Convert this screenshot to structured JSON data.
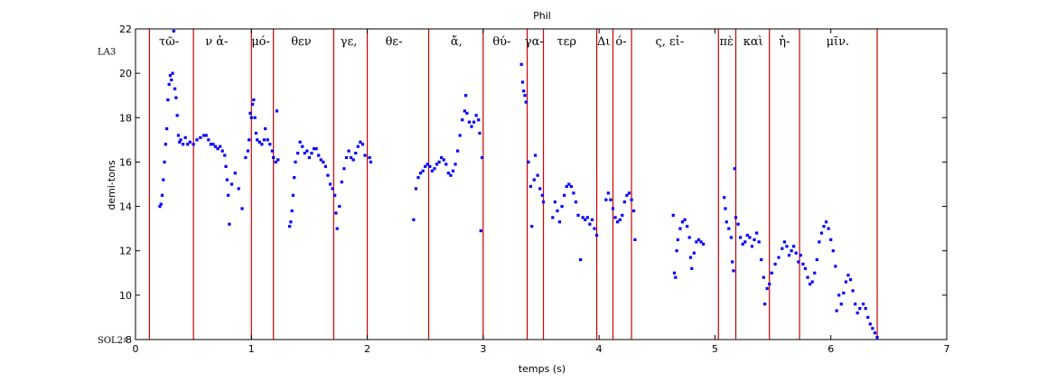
{
  "chart_data": {
    "type": "scatter",
    "title": "Phil",
    "xlabel": "temps (s)",
    "ylabel": "demi-tons",
    "xlim": [
      0,
      7
    ],
    "ylim": [
      8,
      22
    ],
    "xticks": [
      0,
      1,
      2,
      3,
      4,
      5,
      6,
      7
    ],
    "yticks": [
      8,
      10,
      12,
      14,
      16,
      18,
      20,
      22
    ],
    "grid": false,
    "legend": "none",
    "marker_color": "#0000ff",
    "boundary_color": "#cc0000",
    "note_labels": [
      {
        "text": "LA3",
        "y": 21
      },
      {
        "text": "SOL2♯",
        "y": 8
      }
    ],
    "boundaries": [
      0.12,
      0.5,
      1.0,
      1.19,
      1.71,
      2.0,
      2.53,
      3.0,
      3.38,
      3.52,
      3.98,
      4.12,
      4.28,
      5.03,
      5.18,
      5.47,
      5.73,
      6.4
    ],
    "syllables": [
      {
        "text": "τῶ-",
        "x": 0.29
      },
      {
        "text": "ν ἁ-",
        "x": 0.7
      },
      {
        "text": "μό-",
        "x": 1.08
      },
      {
        "text": "θεν",
        "x": 1.43
      },
      {
        "text": "γε,",
        "x": 1.84
      },
      {
        "text": "θε-",
        "x": 2.23
      },
      {
        "text": "ἄ,",
        "x": 2.77
      },
      {
        "text": "θύ-",
        "x": 3.16
      },
      {
        "text": "γα-",
        "x": 3.44
      },
      {
        "text": "τερ",
        "x": 3.72
      },
      {
        "text": "Δι",
        "x": 4.04
      },
      {
        "text": "ό-",
        "x": 4.19
      },
      {
        "text": "ς, εἰ-",
        "x": 4.61
      },
      {
        "text": "πὲ",
        "x": 5.1
      },
      {
        "text": "καὶ",
        "x": 5.33
      },
      {
        "text": "ἡ-",
        "x": 5.6
      },
      {
        "text": "μῖν.",
        "x": 6.06
      }
    ],
    "series": [
      {
        "points": [
          [
            0.21,
            14.0
          ],
          [
            0.22,
            14.1
          ],
          [
            0.23,
            14.5
          ],
          [
            0.24,
            15.2
          ],
          [
            0.25,
            16.0
          ],
          [
            0.26,
            16.8
          ],
          [
            0.27,
            17.5
          ],
          [
            0.28,
            18.8
          ],
          [
            0.29,
            19.5
          ],
          [
            0.3,
            19.9
          ],
          [
            0.31,
            19.7
          ],
          [
            0.32,
            20.0
          ],
          [
            0.33,
            21.9
          ],
          [
            0.34,
            19.3
          ],
          [
            0.35,
            18.9
          ],
          [
            0.36,
            18.1
          ],
          [
            0.37,
            17.2
          ],
          [
            0.38,
            16.9
          ],
          [
            0.39,
            17.0
          ],
          [
            0.41,
            16.8
          ],
          [
            0.43,
            17.1
          ],
          [
            0.45,
            16.8
          ],
          [
            0.47,
            16.9
          ],
          [
            0.5,
            16.8
          ],
          [
            0.53,
            17.0
          ],
          [
            0.56,
            17.1
          ],
          [
            0.59,
            17.2
          ],
          [
            0.61,
            17.2
          ],
          [
            0.63,
            17.0
          ],
          [
            0.65,
            16.8
          ],
          [
            0.67,
            16.8
          ],
          [
            0.69,
            16.7
          ],
          [
            0.71,
            16.6
          ],
          [
            0.73,
            16.7
          ],
          [
            0.75,
            16.5
          ],
          [
            0.77,
            16.3
          ],
          [
            0.78,
            15.8
          ],
          [
            0.79,
            15.2
          ],
          [
            0.8,
            14.5
          ],
          [
            0.81,
            13.2
          ],
          [
            0.83,
            15.0
          ],
          [
            0.86,
            15.5
          ],
          [
            0.89,
            14.8
          ],
          [
            0.92,
            13.9
          ],
          [
            0.95,
            16.2
          ],
          [
            0.97,
            16.5
          ],
          [
            0.98,
            17.0
          ],
          [
            0.99,
            18.2
          ],
          [
            1.0,
            18.0
          ],
          [
            1.01,
            18.6
          ],
          [
            1.02,
            18.8
          ],
          [
            1.03,
            18.0
          ],
          [
            1.04,
            17.3
          ],
          [
            1.05,
            17.0
          ],
          [
            1.07,
            16.9
          ],
          [
            1.09,
            16.8
          ],
          [
            1.11,
            17.0
          ],
          [
            1.12,
            17.5
          ],
          [
            1.14,
            17.0
          ],
          [
            1.16,
            16.8
          ],
          [
            1.18,
            16.5
          ],
          [
            1.19,
            16.2
          ],
          [
            1.21,
            16.0
          ],
          [
            1.22,
            18.3
          ],
          [
            1.23,
            16.1
          ],
          [
            1.33,
            13.1
          ],
          [
            1.34,
            13.3
          ],
          [
            1.35,
            13.8
          ],
          [
            1.36,
            14.5
          ],
          [
            1.37,
            15.3
          ],
          [
            1.38,
            16.0
          ],
          [
            1.4,
            16.4
          ],
          [
            1.42,
            16.9
          ],
          [
            1.44,
            16.7
          ],
          [
            1.46,
            16.4
          ],
          [
            1.48,
            16.5
          ],
          [
            1.5,
            16.2
          ],
          [
            1.52,
            16.4
          ],
          [
            1.54,
            16.6
          ],
          [
            1.56,
            16.6
          ],
          [
            1.58,
            16.3
          ],
          [
            1.6,
            16.1
          ],
          [
            1.62,
            16.0
          ],
          [
            1.64,
            15.8
          ],
          [
            1.66,
            15.4
          ],
          [
            1.68,
            15.0
          ],
          [
            1.7,
            14.8
          ],
          [
            1.72,
            14.5
          ],
          [
            1.73,
            13.7
          ],
          [
            1.74,
            13.0
          ],
          [
            1.76,
            14.0
          ],
          [
            1.78,
            15.1
          ],
          [
            1.8,
            15.7
          ],
          [
            1.82,
            16.2
          ],
          [
            1.84,
            16.5
          ],
          [
            1.86,
            16.2
          ],
          [
            1.88,
            16.1
          ],
          [
            1.9,
            16.4
          ],
          [
            1.92,
            16.7
          ],
          [
            1.94,
            16.9
          ],
          [
            1.96,
            16.8
          ],
          [
            1.98,
            16.3
          ],
          [
            2.02,
            16.2
          ],
          [
            2.03,
            16.0
          ],
          [
            2.4,
            13.4
          ],
          [
            2.42,
            14.8
          ],
          [
            2.44,
            15.3
          ],
          [
            2.46,
            15.5
          ],
          [
            2.48,
            15.6
          ],
          [
            2.5,
            15.8
          ],
          [
            2.52,
            15.9
          ],
          [
            2.54,
            15.8
          ],
          [
            2.56,
            15.6
          ],
          [
            2.58,
            15.7
          ],
          [
            2.6,
            15.9
          ],
          [
            2.62,
            16.0
          ],
          [
            2.64,
            16.2
          ],
          [
            2.66,
            16.1
          ],
          [
            2.68,
            15.9
          ],
          [
            2.7,
            15.5
          ],
          [
            2.72,
            15.4
          ],
          [
            2.74,
            15.6
          ],
          [
            2.76,
            15.9
          ],
          [
            2.78,
            16.5
          ],
          [
            2.8,
            17.2
          ],
          [
            2.82,
            17.9
          ],
          [
            2.84,
            18.3
          ],
          [
            2.85,
            19.0
          ],
          [
            2.86,
            18.2
          ],
          [
            2.88,
            17.8
          ],
          [
            2.9,
            17.6
          ],
          [
            2.92,
            17.8
          ],
          [
            2.94,
            18.1
          ],
          [
            2.96,
            17.9
          ],
          [
            2.97,
            17.3
          ],
          [
            2.98,
            12.9
          ],
          [
            2.99,
            16.2
          ],
          [
            3.33,
            20.4
          ],
          [
            3.34,
            19.6
          ],
          [
            3.35,
            19.2
          ],
          [
            3.36,
            19.0
          ],
          [
            3.37,
            18.7
          ],
          [
            3.39,
            16.0
          ],
          [
            3.41,
            14.9
          ],
          [
            3.42,
            13.1
          ],
          [
            3.44,
            15.2
          ],
          [
            3.45,
            16.3
          ],
          [
            3.47,
            15.4
          ],
          [
            3.49,
            14.8
          ],
          [
            3.51,
            14.5
          ],
          [
            3.52,
            14.2
          ],
          [
            3.6,
            13.5
          ],
          [
            3.62,
            14.2
          ],
          [
            3.64,
            13.8
          ],
          [
            3.66,
            13.3
          ],
          [
            3.68,
            14.0
          ],
          [
            3.7,
            14.5
          ],
          [
            3.72,
            14.9
          ],
          [
            3.74,
            15.0
          ],
          [
            3.76,
            14.9
          ],
          [
            3.78,
            14.6
          ],
          [
            3.8,
            14.2
          ],
          [
            3.82,
            13.6
          ],
          [
            3.84,
            11.6
          ],
          [
            3.86,
            13.5
          ],
          [
            3.88,
            13.4
          ],
          [
            3.9,
            13.5
          ],
          [
            3.92,
            13.2
          ],
          [
            3.94,
            13.4
          ],
          [
            3.96,
            13.0
          ],
          [
            3.98,
            12.7
          ],
          [
            4.06,
            14.3
          ],
          [
            4.08,
            14.6
          ],
          [
            4.1,
            14.3
          ],
          [
            4.12,
            13.9
          ],
          [
            4.14,
            13.5
          ],
          [
            4.16,
            13.3
          ],
          [
            4.18,
            13.4
          ],
          [
            4.2,
            13.6
          ],
          [
            4.22,
            14.2
          ],
          [
            4.24,
            14.5
          ],
          [
            4.26,
            14.6
          ],
          [
            4.28,
            14.3
          ],
          [
            4.3,
            13.8
          ],
          [
            4.31,
            12.5
          ],
          [
            4.64,
            13.6
          ],
          [
            4.65,
            11.0
          ],
          [
            4.66,
            10.8
          ],
          [
            4.67,
            12.0
          ],
          [
            4.68,
            12.5
          ],
          [
            4.7,
            13.0
          ],
          [
            4.72,
            13.3
          ],
          [
            4.74,
            13.4
          ],
          [
            4.76,
            13.1
          ],
          [
            4.78,
            12.6
          ],
          [
            4.79,
            11.7
          ],
          [
            4.8,
            11.2
          ],
          [
            4.82,
            11.9
          ],
          [
            4.84,
            12.4
          ],
          [
            4.86,
            12.5
          ],
          [
            4.88,
            12.4
          ],
          [
            4.9,
            12.3
          ],
          [
            5.08,
            14.4
          ],
          [
            5.09,
            13.9
          ],
          [
            5.1,
            13.3
          ],
          [
            5.12,
            13.0
          ],
          [
            5.14,
            12.6
          ],
          [
            5.15,
            11.5
          ],
          [
            5.16,
            11.1
          ],
          [
            5.17,
            15.7
          ],
          [
            5.18,
            13.5
          ],
          [
            5.2,
            13.2
          ],
          [
            5.22,
            12.6
          ],
          [
            5.24,
            12.3
          ],
          [
            5.26,
            12.4
          ],
          [
            5.28,
            12.7
          ],
          [
            5.3,
            12.6
          ],
          [
            5.32,
            12.2
          ],
          [
            5.34,
            12.5
          ],
          [
            5.36,
            12.8
          ],
          [
            5.38,
            12.4
          ],
          [
            5.4,
            11.6
          ],
          [
            5.42,
            10.8
          ],
          [
            5.43,
            9.6
          ],
          [
            5.45,
            10.3
          ],
          [
            5.47,
            10.5
          ],
          [
            5.49,
            11.0
          ],
          [
            5.52,
            11.4
          ],
          [
            5.55,
            11.7
          ],
          [
            5.58,
            12.1
          ],
          [
            5.6,
            12.4
          ],
          [
            5.62,
            12.2
          ],
          [
            5.64,
            11.8
          ],
          [
            5.66,
            12.0
          ],
          [
            5.68,
            12.2
          ],
          [
            5.7,
            11.9
          ],
          [
            5.72,
            11.5
          ],
          [
            5.74,
            11.8
          ],
          [
            5.76,
            11.4
          ],
          [
            5.78,
            11.2
          ],
          [
            5.8,
            10.8
          ],
          [
            5.82,
            10.5
          ],
          [
            5.84,
            10.6
          ],
          [
            5.86,
            11.0
          ],
          [
            5.88,
            11.6
          ],
          [
            5.9,
            12.4
          ],
          [
            5.92,
            12.8
          ],
          [
            5.94,
            13.1
          ],
          [
            5.96,
            13.3
          ],
          [
            5.98,
            13.0
          ],
          [
            6.0,
            12.5
          ],
          [
            6.02,
            12.0
          ],
          [
            6.04,
            11.3
          ],
          [
            6.05,
            9.3
          ],
          [
            6.07,
            10.0
          ],
          [
            6.09,
            9.6
          ],
          [
            6.11,
            10.1
          ],
          [
            6.13,
            10.6
          ],
          [
            6.15,
            10.9
          ],
          [
            6.17,
            10.7
          ],
          [
            6.19,
            10.2
          ],
          [
            6.21,
            9.6
          ],
          [
            6.23,
            9.2
          ],
          [
            6.25,
            9.4
          ],
          [
            6.28,
            9.6
          ],
          [
            6.3,
            9.4
          ],
          [
            6.32,
            9.0
          ],
          [
            6.34,
            8.7
          ],
          [
            6.36,
            8.5
          ],
          [
            6.38,
            8.3
          ],
          [
            6.4,
            8.1
          ]
        ]
      }
    ]
  }
}
